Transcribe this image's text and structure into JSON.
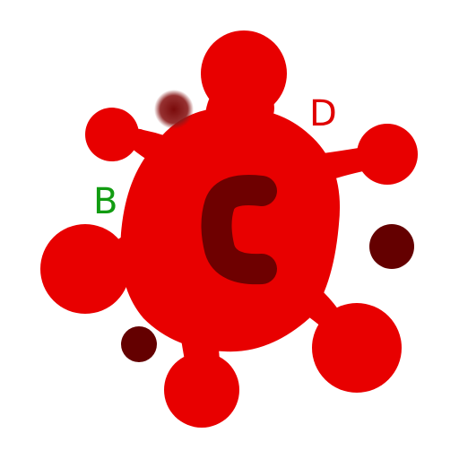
{
  "labels": {
    "center": "C",
    "left": "B",
    "right": "D"
  },
  "colors": {
    "blob": "#e80000",
    "center_letter": "#6e0000",
    "dot": "#640000",
    "label_b": "#129c12",
    "label_d": "#e00000",
    "background": "#ffffff"
  }
}
